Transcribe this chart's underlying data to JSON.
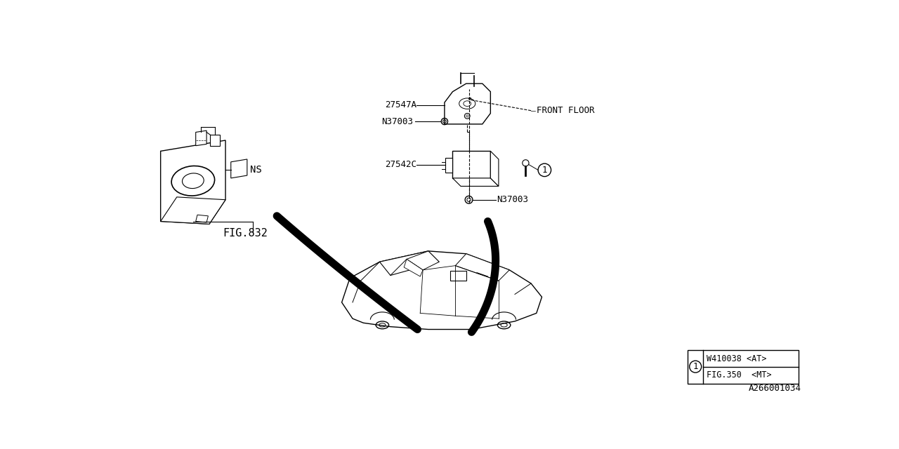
{
  "bg_color": "#FFFFFF",
  "line_color": "#000000",
  "fig_id": "A266001034",
  "parts": {
    "label_fig832": "FIG.832",
    "label_ns": "NS",
    "label_27542c": "27542C",
    "label_n37003_top": "N37003",
    "label_n37003_bot": "N37003",
    "label_27547a": "27547A",
    "label_front_floor": "FRONT FLOOR"
  },
  "table": {
    "circle_label": "1",
    "row1": "W410038 <AT>",
    "row2": "FIG.350  <MT>"
  },
  "font_size_label": 9,
  "font_size_part": 9,
  "font_size_table": 8.5,
  "font_size_fig_id": 9
}
